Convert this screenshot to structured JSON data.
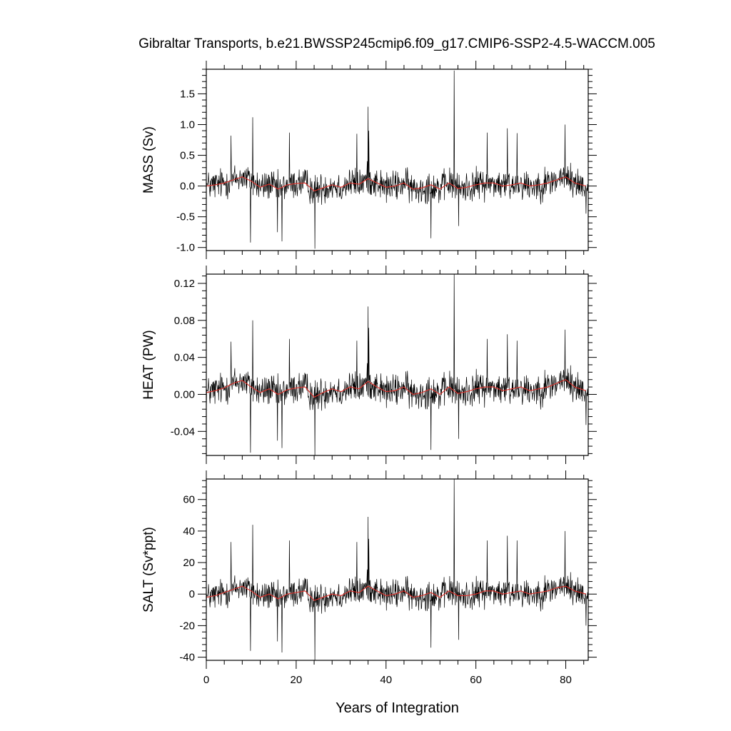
{
  "title": "Gibraltar Transports, b.e21.BWSSP245cmip6.f09_g17.CMIP6-SSP2-4.5-WACCM.005",
  "chart_data": [
    {
      "type": "line",
      "ylabel": "MASS (Sv)",
      "xlabel": "",
      "xlim": [
        0,
        85
      ],
      "ylim": [
        -1.05,
        1.9
      ],
      "x_ticks": [
        0,
        20,
        40,
        60,
        80
      ],
      "y_ticks": [
        -1.0,
        -0.5,
        0.0,
        0.5,
        1.0,
        1.5
      ],
      "y_tick_labels": [
        "-1.0",
        "-0.5",
        "0.0",
        "0.5",
        "1.0",
        "1.5"
      ],
      "noise_amplitude": 0.2,
      "series": [
        {
          "color": "#000000",
          "x": [
            0,
            5.5,
            9.8,
            10.3,
            15.8,
            16.8,
            18.5,
            24.2,
            33.5,
            36.0,
            36.2,
            50.0,
            55.2,
            56.2,
            62.5,
            67.0,
            69.2,
            79.8,
            84.5
          ],
          "values": [
            -0.05,
            0.82,
            -0.92,
            1.12,
            -0.75,
            -0.9,
            0.87,
            -1.02,
            0.85,
            1.29,
            0.9,
            -0.85,
            1.88,
            -0.65,
            0.87,
            0.94,
            0.86,
            1.0,
            -0.45
          ]
        },
        {
          "color": "#e0302a",
          "x": [
            0,
            2,
            4,
            6,
            8,
            10,
            12,
            14,
            16,
            18,
            20,
            22,
            24,
            26,
            28,
            30,
            32,
            34,
            36,
            38,
            40,
            42,
            44,
            46,
            48,
            50,
            52,
            54,
            56,
            58,
            60,
            62,
            64,
            66,
            68,
            70,
            72,
            74,
            76,
            78,
            80,
            82,
            84.5
          ],
          "values": [
            0.0,
            0.02,
            0.05,
            0.1,
            0.15,
            0.08,
            -0.02,
            0.03,
            -0.05,
            0.02,
            0.04,
            0.05,
            -0.08,
            -0.03,
            0.02,
            -0.02,
            0.05,
            0.03,
            0.12,
            0.05,
            -0.02,
            0.0,
            0.05,
            -0.05,
            -0.03,
            0.02,
            -0.05,
            0.05,
            -0.04,
            -0.02,
            0.02,
            0.05,
            0.05,
            0.0,
            0.02,
            0.05,
            0.0,
            0.02,
            0.05,
            0.1,
            0.15,
            0.05,
            0.0
          ]
        }
      ]
    },
    {
      "type": "line",
      "ylabel": "HEAT (PW)",
      "xlabel": "",
      "xlim": [
        0,
        85
      ],
      "ylim": [
        -0.066,
        0.13
      ],
      "x_ticks": [
        0,
        20,
        40,
        60,
        80
      ],
      "y_ticks": [
        -0.04,
        0.0,
        0.04,
        0.08,
        0.12
      ],
      "y_tick_labels": [
        "-0.04",
        "0.00",
        "0.04",
        "0.08",
        "0.12"
      ],
      "noise_amplitude": 0.014,
      "series": [
        {
          "color": "#000000",
          "x": [
            0,
            5.5,
            9.8,
            10.3,
            15.8,
            16.8,
            18.5,
            24.2,
            33.5,
            36.0,
            36.2,
            50.0,
            55.2,
            56.2,
            62.5,
            67.0,
            69.2,
            79.8,
            84.5
          ],
          "values": [
            -0.02,
            0.057,
            -0.063,
            0.08,
            -0.05,
            -0.058,
            0.06,
            -0.066,
            0.058,
            0.095,
            0.072,
            -0.06,
            0.13,
            -0.048,
            0.06,
            0.065,
            0.058,
            0.07,
            -0.033
          ]
        },
        {
          "color": "#e0302a",
          "x": [
            0,
            2,
            4,
            6,
            8,
            10,
            12,
            14,
            16,
            18,
            20,
            22,
            24,
            26,
            28,
            30,
            32,
            34,
            36,
            38,
            40,
            42,
            44,
            46,
            48,
            50,
            52,
            54,
            56,
            58,
            60,
            62,
            64,
            66,
            68,
            70,
            72,
            74,
            76,
            78,
            80,
            82,
            84.5
          ],
          "values": [
            0.002,
            0.004,
            0.007,
            0.012,
            0.015,
            0.008,
            0.002,
            0.006,
            0.0,
            0.005,
            0.007,
            0.008,
            -0.003,
            0.002,
            0.006,
            0.003,
            0.008,
            0.006,
            0.014,
            0.008,
            0.003,
            0.004,
            0.008,
            0.0,
            0.002,
            0.006,
            0.0,
            0.008,
            0.001,
            0.003,
            0.006,
            0.008,
            0.008,
            0.004,
            0.006,
            0.008,
            0.004,
            0.006,
            0.008,
            0.012,
            0.016,
            0.008,
            0.004
          ]
        }
      ]
    },
    {
      "type": "line",
      "ylabel": "SALT (Sv*ppt)",
      "xlabel": "Years of Integration",
      "xlim": [
        0,
        85
      ],
      "ylim": [
        -42,
        73
      ],
      "x_ticks": [
        0,
        20,
        40,
        60,
        80
      ],
      "x_tick_labels": [
        "0",
        "20",
        "40",
        "60",
        "80"
      ],
      "y_ticks": [
        -40,
        -20,
        0,
        20,
        40,
        60
      ],
      "y_tick_labels": [
        "-40",
        "-20",
        "0",
        "20",
        "40",
        "60"
      ],
      "noise_amplitude": 7.5,
      "series": [
        {
          "color": "#000000",
          "x": [
            0,
            5.5,
            9.8,
            10.3,
            15.8,
            16.8,
            18.5,
            24.2,
            33.5,
            36.0,
            36.2,
            50.0,
            55.2,
            56.2,
            62.5,
            67.0,
            69.2,
            79.8,
            84.5
          ],
          "values": [
            -8,
            33,
            -36,
            44,
            -30,
            -37,
            34,
            -42,
            33,
            49,
            35,
            -34,
            73,
            -29,
            34,
            37,
            34,
            40,
            -20
          ]
        },
        {
          "color": "#e0302a",
          "x": [
            0,
            2,
            4,
            6,
            8,
            10,
            12,
            14,
            16,
            18,
            20,
            22,
            24,
            26,
            28,
            30,
            32,
            34,
            36,
            38,
            40,
            42,
            44,
            46,
            48,
            50,
            52,
            54,
            56,
            58,
            60,
            62,
            64,
            66,
            68,
            70,
            72,
            74,
            76,
            78,
            80,
            82,
            84.5
          ],
          "values": [
            -2,
            -1,
            1,
            3,
            5,
            2,
            -2,
            0,
            -3,
            0,
            1,
            2,
            -4,
            -2,
            0,
            -1,
            2,
            1,
            5,
            2,
            -1,
            0,
            2,
            -2,
            -1,
            1,
            -2,
            2,
            -1,
            -1,
            0,
            2,
            2,
            0,
            1,
            2,
            0,
            1,
            2,
            4,
            5,
            2,
            0
          ]
        }
      ]
    }
  ]
}
